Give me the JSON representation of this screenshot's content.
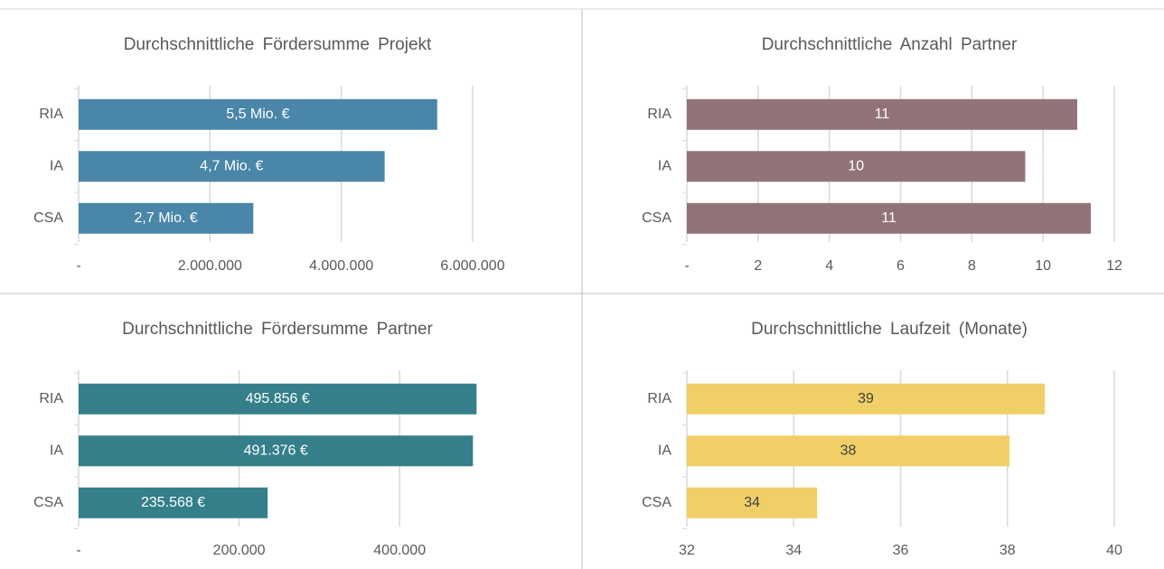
{
  "chart_data": [
    {
      "type": "bar",
      "title": "Durchschnittliche Fördersumme Projekt",
      "categories": [
        "RIA",
        "IA",
        "CSA"
      ],
      "values": [
        5460000,
        4660000,
        2660000
      ],
      "value_labels": [
        "5,5 Mio. €",
        "4,7 Mio. €",
        "2,7 Mio. €"
      ],
      "color": "#4a86a8",
      "label_color": "#ffffff",
      "xlim": [
        0,
        6000000
      ],
      "xticks": [
        {
          "value": 0,
          "label": "-"
        },
        {
          "value": 2000000,
          "label": "2.000.000"
        },
        {
          "value": 4000000,
          "label": "4.000.000"
        },
        {
          "value": 6000000,
          "label": "6.000.000"
        }
      ],
      "grid": true
    },
    {
      "type": "bar",
      "title": "Durchschnittliche Anzahl Partner",
      "categories": [
        "RIA",
        "IA",
        "CSA"
      ],
      "values": [
        10.96,
        9.5,
        11.34
      ],
      "value_labels": [
        "11",
        "10",
        "11"
      ],
      "color": "#93737a",
      "label_color": "#ffffff",
      "xlim": [
        0,
        12
      ],
      "xticks": [
        {
          "value": 0,
          "label": "-"
        },
        2,
        4,
        6,
        8,
        10,
        12
      ],
      "grid": true
    },
    {
      "type": "bar",
      "title": "Durchschnittliche Fördersumme Partner",
      "categories": [
        "RIA",
        "IA",
        "CSA"
      ],
      "values": [
        495856,
        491376,
        235568
      ],
      "value_labels": [
        "495.856 €",
        "491.376 €",
        "235.568 €"
      ],
      "color": "#347f8a",
      "label_color": "#ffffff",
      "xlim": [
        0,
        500000
      ],
      "xticks": [
        {
          "value": 0,
          "label": "-"
        },
        {
          "value": 200000,
          "label": "200.000"
        },
        {
          "value": 400000,
          "label": "400.000"
        }
      ],
      "grid": true
    },
    {
      "type": "bar",
      "title": "Durchschnittliche Laufzeit (Monate)",
      "categories": [
        "RIA",
        "IA",
        "CSA"
      ],
      "values": [
        38.7,
        38.04,
        34.44
      ],
      "value_labels": [
        "39",
        "38",
        "34"
      ],
      "color": "#f0cf67",
      "label_color": "#404040",
      "xlim": [
        32,
        40
      ],
      "xticks": [
        32,
        34,
        36,
        38,
        40
      ],
      "grid": true
    }
  ]
}
